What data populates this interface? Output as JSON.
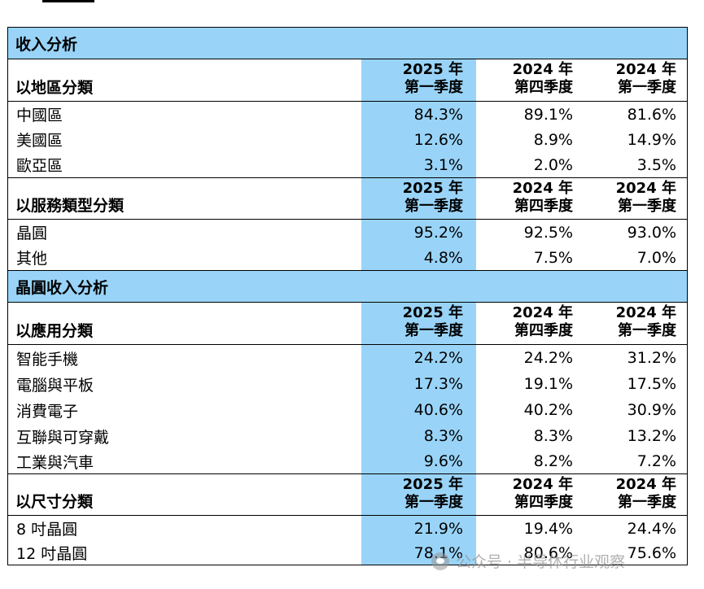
{
  "colors": {
    "section_bg": "#99d4f8",
    "highlight_col": "#99d4f8",
    "border": "#000000"
  },
  "col_headers": [
    {
      "line1": "2025 年",
      "line2": "第一季度"
    },
    {
      "line1": "2024 年",
      "line2": "第四季度"
    },
    {
      "line1": "2024 年",
      "line2": "第一季度"
    }
  ],
  "revenue_section": {
    "title": "收入分析"
  },
  "by_region": {
    "title": "以地區分類",
    "rows": [
      {
        "label": "中國區",
        "values": [
          "84.3%",
          "89.1%",
          "81.6%"
        ]
      },
      {
        "label": "美國區",
        "values": [
          "12.6%",
          "8.9%",
          "14.9%"
        ]
      },
      {
        "label": "歐亞區",
        "values": [
          "3.1%",
          "2.0%",
          "3.5%"
        ]
      }
    ]
  },
  "by_service": {
    "title": "以服務類型分類",
    "rows": [
      {
        "label": "晶圓",
        "values": [
          "95.2%",
          "92.5%",
          "93.0%"
        ]
      },
      {
        "label": "其他",
        "values": [
          "4.8%",
          "7.5%",
          "7.0%"
        ]
      }
    ]
  },
  "wafer_section": {
    "title": "晶圓收入分析"
  },
  "by_application": {
    "title": "以應用分類",
    "rows": [
      {
        "label": "智能手機",
        "values": [
          "24.2%",
          "24.2%",
          "31.2%"
        ]
      },
      {
        "label": "電腦與平板",
        "values": [
          "17.3%",
          "19.1%",
          "17.5%"
        ]
      },
      {
        "label": "消費電子",
        "values": [
          "40.6%",
          "40.2%",
          "30.9%"
        ]
      },
      {
        "label": "互聯與可穿戴",
        "values": [
          "8.3%",
          "8.3%",
          "13.2%"
        ]
      },
      {
        "label": "工業與汽車",
        "values": [
          "9.6%",
          "8.2%",
          "7.2%"
        ]
      }
    ]
  },
  "by_size": {
    "title": "以尺寸分類",
    "rows": [
      {
        "label": "8 吋晶圓",
        "values": [
          "21.9%",
          "19.4%",
          "24.4%"
        ]
      },
      {
        "label": "12 吋晶圓",
        "values": [
          "78.1%",
          "80.6%",
          "75.6%"
        ]
      }
    ]
  },
  "watermark": {
    "text": "公众号 · 半导体行业观察",
    "icon": "wechat-icon"
  }
}
